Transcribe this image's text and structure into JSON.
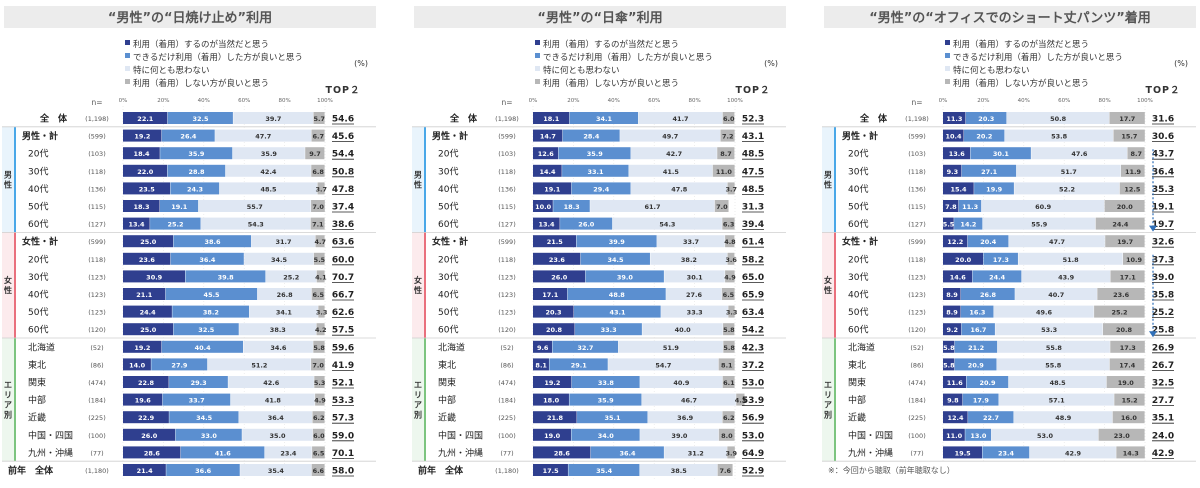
{
  "legend": [
    {
      "label": "利用（着用）するのが当然だと思う",
      "color": "#2f3f8f"
    },
    {
      "label": "できるだけ利用（着用）した方が良いと思う",
      "color": "#5b8fd0"
    },
    {
      "label": "特に何とも思わない",
      "color": "#dfe7f3"
    },
    {
      "label": "利用（着用）しない方が良いと思う",
      "color": "#b7b7b7"
    }
  ],
  "labels": {
    "pct_unit": "(%)",
    "top2": "TOP２",
    "n_header": "n=",
    "axis_ticks": [
      "0%",
      "20%",
      "40%",
      "60%",
      "80%",
      "100%"
    ],
    "group_male": "男性",
    "group_female": "女性",
    "group_area": "エリア別"
  },
  "row_labels": [
    "全　体",
    "男性・計",
    "20代",
    "30代",
    "40代",
    "50代",
    "60代",
    "女性・計",
    "20代",
    "30代",
    "40代",
    "50代",
    "60代",
    "北海道",
    "東北",
    "関東",
    "中部",
    "近畿",
    "中国・四国",
    "九州・沖縄",
    "前年　全体"
  ],
  "chart_data": [
    {
      "type": "bar",
      "title": "“男性”の“日焼け止め”利用",
      "categories": [
        "全　体",
        "男性・計",
        "20代",
        "30代",
        "40代",
        "50代",
        "60代",
        "女性・計",
        "20代",
        "30代",
        "40代",
        "50代",
        "60代",
        "北海道",
        "東北",
        "関東",
        "中部",
        "近畿",
        "中国・四国",
        "九州・沖縄",
        "前年　全体"
      ],
      "n": [
        "(1,198)",
        "(599)",
        "(103)",
        "(118)",
        "(136)",
        "(115)",
        "(127)",
        "(599)",
        "(118)",
        "(123)",
        "(123)",
        "(123)",
        "(120)",
        "(52)",
        "(86)",
        "(474)",
        "(184)",
        "(225)",
        "(100)",
        "(77)",
        "(1,180)"
      ],
      "series": [
        {
          "name": "利用（着用）するのが当然だと思う",
          "values": [
            22.1,
            19.2,
            18.4,
            22.0,
            23.5,
            18.3,
            13.4,
            25.0,
            23.6,
            30.9,
            21.1,
            24.4,
            25.0,
            19.2,
            14.0,
            22.8,
            19.6,
            22.9,
            26.0,
            28.6,
            21.4
          ]
        },
        {
          "name": "できるだけ利用（着用）した方が良いと思う",
          "values": [
            32.5,
            26.4,
            35.9,
            28.8,
            24.3,
            19.1,
            25.2,
            38.6,
            36.4,
            39.8,
            45.5,
            38.2,
            32.5,
            40.4,
            27.9,
            29.3,
            33.7,
            34.5,
            33.0,
            41.6,
            36.6
          ]
        },
        {
          "name": "特に何とも思わない",
          "values": [
            39.7,
            47.7,
            35.9,
            42.4,
            48.5,
            55.7,
            54.3,
            31.7,
            34.5,
            25.2,
            26.8,
            34.1,
            38.3,
            34.6,
            51.2,
            42.6,
            41.8,
            36.4,
            35.0,
            23.4,
            35.4
          ]
        },
        {
          "name": "利用（着用）しない方が良いと思う",
          "values": [
            5.7,
            6.7,
            9.7,
            6.8,
            3.7,
            7.0,
            7.1,
            4.7,
            5.5,
            4.1,
            6.5,
            3.3,
            4.2,
            5.8,
            7.0,
            5.3,
            4.9,
            6.2,
            6.0,
            6.5,
            6.6
          ]
        }
      ],
      "top2": [
        "54.6",
        "45.6",
        "54.4",
        "50.8",
        "47.8",
        "37.4",
        "38.6",
        "63.6",
        "60.0",
        "70.7",
        "66.7",
        "62.6",
        "57.5",
        "59.6",
        "41.9",
        "52.1",
        "53.3",
        "57.3",
        "59.0",
        "70.1",
        "58.0"
      ],
      "xlim": [
        0,
        100
      ]
    },
    {
      "type": "bar",
      "title": "“男性”の“日傘”利用",
      "categories": [
        "全　体",
        "男性・計",
        "20代",
        "30代",
        "40代",
        "50代",
        "60代",
        "女性・計",
        "20代",
        "30代",
        "40代",
        "50代",
        "60代",
        "北海道",
        "東北",
        "関東",
        "中部",
        "近畿",
        "中国・四国",
        "九州・沖縄",
        "前年　全体"
      ],
      "n": [
        "(1,198)",
        "(599)",
        "(103)",
        "(118)",
        "(136)",
        "(115)",
        "(127)",
        "(599)",
        "(118)",
        "(123)",
        "(123)",
        "(123)",
        "(120)",
        "(52)",
        "(86)",
        "(474)",
        "(184)",
        "(225)",
        "(100)",
        "(77)",
        "(1,180)"
      ],
      "series": [
        {
          "name": "利用（着用）するのが当然だと思う",
          "values": [
            18.1,
            14.7,
            12.6,
            14.4,
            19.1,
            10.0,
            13.4,
            21.5,
            23.6,
            26.0,
            17.1,
            20.3,
            20.8,
            9.6,
            8.1,
            19.2,
            18.0,
            21.8,
            19.0,
            28.6,
            17.5
          ]
        },
        {
          "name": "できるだけ利用（着用）した方が良いと思う",
          "values": [
            34.1,
            28.4,
            35.9,
            33.1,
            29.4,
            18.3,
            26.0,
            39.9,
            34.5,
            39.0,
            48.8,
            43.1,
            33.3,
            32.7,
            29.1,
            33.8,
            35.9,
            35.1,
            34.0,
            36.4,
            35.4
          ]
        },
        {
          "name": "特に何とも思わない",
          "values": [
            41.7,
            49.7,
            42.7,
            41.5,
            47.8,
            61.7,
            54.3,
            33.7,
            38.2,
            30.1,
            27.6,
            33.3,
            40.0,
            51.9,
            54.7,
            40.9,
            46.7,
            36.9,
            39.0,
            31.2,
            38.5
          ]
        },
        {
          "name": "利用（着用）しない方が良いと思う",
          "values": [
            6.0,
            7.2,
            8.7,
            11.0,
            3.7,
            7.0,
            6.3,
            4.8,
            3.6,
            4.9,
            6.5,
            3.3,
            5.8,
            5.8,
            8.1,
            6.1,
            4.3,
            6.2,
            8.0,
            3.9,
            7.6
          ]
        }
      ],
      "top2": [
        "52.3",
        "43.1",
        "48.5",
        "47.5",
        "48.5",
        "31.3",
        "39.4",
        "61.4",
        "58.2",
        "65.0",
        "65.9",
        "63.4",
        "54.2",
        "42.3",
        "37.2",
        "53.0",
        "53.9",
        "56.9",
        "53.0",
        "64.9",
        "52.9"
      ],
      "xlim": [
        0,
        100
      ]
    },
    {
      "type": "bar",
      "title": "“男性”の“オフィスでのショート丈パンツ”着用",
      "categories": [
        "全　体",
        "男性・計",
        "20代",
        "30代",
        "40代",
        "50代",
        "60代",
        "女性・計",
        "20代",
        "30代",
        "40代",
        "50代",
        "60代",
        "北海道",
        "東北",
        "関東",
        "中部",
        "近畿",
        "中国・四国",
        "九州・沖縄"
      ],
      "n": [
        "(1,198)",
        "(599)",
        "(103)",
        "(118)",
        "(136)",
        "(115)",
        "(127)",
        "(599)",
        "(118)",
        "(123)",
        "(123)",
        "(123)",
        "(120)",
        "(52)",
        "(86)",
        "(474)",
        "(184)",
        "(225)",
        "(100)",
        "(77)"
      ],
      "series": [
        {
          "name": "利用（着用）するのが当然だと思う",
          "values": [
            11.3,
            10.4,
            13.6,
            9.3,
            15.4,
            7.8,
            5.5,
            12.2,
            20.0,
            14.6,
            8.9,
            8.9,
            9.2,
            5.8,
            5.8,
            11.6,
            9.8,
            12.4,
            11.0,
            19.5
          ]
        },
        {
          "name": "できるだけ利用（着用）した方が良いと思う",
          "values": [
            20.3,
            20.2,
            30.1,
            27.1,
            19.9,
            11.3,
            14.2,
            20.4,
            17.3,
            24.4,
            26.8,
            16.3,
            16.7,
            21.2,
            20.9,
            20.9,
            17.9,
            22.7,
            13.0,
            23.4
          ]
        },
        {
          "name": "特に何とも思わない",
          "values": [
            50.8,
            53.8,
            47.6,
            51.7,
            52.2,
            60.9,
            55.9,
            47.7,
            51.8,
            43.9,
            40.7,
            49.6,
            53.3,
            55.8,
            55.8,
            48.5,
            57.1,
            48.9,
            53.0,
            42.9
          ]
        },
        {
          "name": "利用（着用）しない方が良いと思う",
          "values": [
            17.7,
            15.7,
            8.7,
            11.9,
            12.5,
            20.0,
            24.4,
            19.7,
            10.9,
            17.1,
            23.6,
            25.2,
            20.8,
            17.3,
            17.4,
            19.0,
            15.2,
            16.0,
            23.0,
            14.3
          ]
        }
      ],
      "top2": [
        "31.6",
        "30.6",
        "43.7",
        "36.4",
        "35.3",
        "19.1",
        "19.7",
        "32.6",
        "37.3",
        "39.0",
        "35.8",
        "25.2",
        "25.8",
        "26.9",
        "26.7",
        "32.5",
        "27.7",
        "35.1",
        "24.0",
        "42.9"
      ],
      "xlim": [
        0,
        100
      ],
      "footnote": "※：今回から聴取（前年聴取なし）"
    }
  ]
}
